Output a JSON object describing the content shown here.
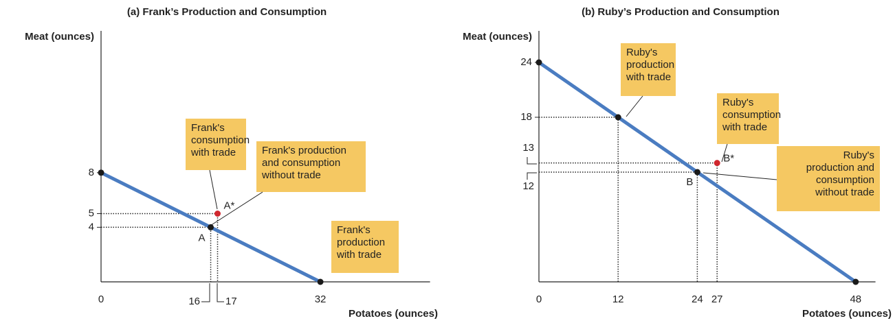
{
  "chart_data": [
    {
      "type": "line",
      "title": "(a) Frank’s Production and Consumption",
      "x_label": "Potatoes (ounces)",
      "y_label": "Meat (ounces)",
      "xlim": [
        0,
        48
      ],
      "ylim": [
        0,
        18
      ],
      "xticks": [
        0,
        16,
        17,
        32
      ],
      "yticks": [
        4,
        5,
        8
      ],
      "series": [
        {
          "color": "#4a7cc1",
          "x": [
            0,
            32
          ],
          "values": [
            8,
            0
          ]
        }
      ],
      "points": [
        {
          "label": "A",
          "x": 16,
          "y": 4,
          "color": "#1a1a1a"
        },
        {
          "label": "A*",
          "x": 17,
          "y": 5,
          "color": "#d0282e"
        }
      ],
      "annotations": [
        [
          "Frank's",
          "consumption",
          "with trade"
        ],
        [
          "Frank's production",
          "and consumption",
          "without trade"
        ],
        [
          "Frank's",
          "production",
          "with trade"
        ]
      ]
    },
    {
      "type": "line",
      "title": "(b) Ruby’s Production and Consumption",
      "x_label": "Potatoes (ounces)",
      "y_label": "Meat (ounces)",
      "xlim": [
        0,
        51
      ],
      "ylim": [
        0,
        27
      ],
      "xticks": [
        0,
        12,
        24,
        27,
        48
      ],
      "yticks": [
        12,
        13,
        18,
        24
      ],
      "series": [
        {
          "color": "#4a7cc1",
          "x": [
            0,
            48
          ],
          "values": [
            24,
            0
          ]
        }
      ],
      "points": [
        {
          "x": 12,
          "y": 18,
          "color": "#1a1a1a"
        },
        {
          "label": "B",
          "x": 24,
          "y": 12,
          "color": "#1a1a1a"
        },
        {
          "label": "B*",
          "x": 27,
          "y": 13,
          "color": "#d0282e"
        }
      ],
      "annotations": [
        [
          "Ruby's",
          "production",
          "with trade"
        ],
        [
          "Ruby's",
          "consumption",
          "with trade"
        ],
        [
          "Ruby's",
          "production and",
          "consumption",
          "without trade"
        ]
      ]
    }
  ]
}
